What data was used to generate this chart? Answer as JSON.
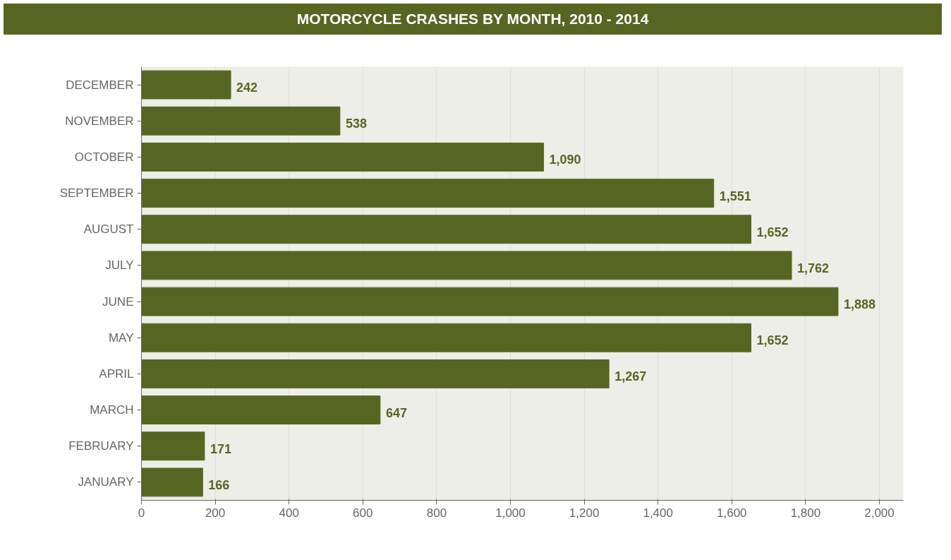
{
  "chart_data": {
    "type": "bar",
    "orientation": "horizontal",
    "title": "MOTORCYCLE CRASHES BY MONTH, 2010 - 2014",
    "categories": [
      "DECEMBER",
      "NOVEMBER",
      "OCTOBER",
      "SEPTEMBER",
      "AUGUST",
      "JULY",
      "JUNE",
      "MAY",
      "APRIL",
      "MARCH",
      "FEBRUARY",
      "JANUARY"
    ],
    "values": [
      242,
      538,
      1090,
      1551,
      1652,
      1762,
      1888,
      1652,
      1267,
      647,
      171,
      166
    ],
    "value_labels": [
      "242",
      "538",
      "1,090",
      "1,551",
      "1,652",
      "1,762",
      "1,888",
      "1,652",
      "1,267",
      "647",
      "171",
      "166"
    ],
    "color": "#566622",
    "xlim": [
      0,
      2065
    ],
    "xticks": [
      0,
      200,
      400,
      600,
      800,
      {
        "value": 1000,
        "label": "1,000"
      },
      {
        "value": 1200,
        "label": "1,200"
      },
      {
        "value": 1400,
        "label": "1,400"
      },
      {
        "value": 1600,
        "label": "1,600"
      },
      {
        "value": 1800,
        "label": "1,800"
      },
      {
        "value": 2000,
        "label": "2,000"
      }
    ],
    "grid": "x"
  }
}
